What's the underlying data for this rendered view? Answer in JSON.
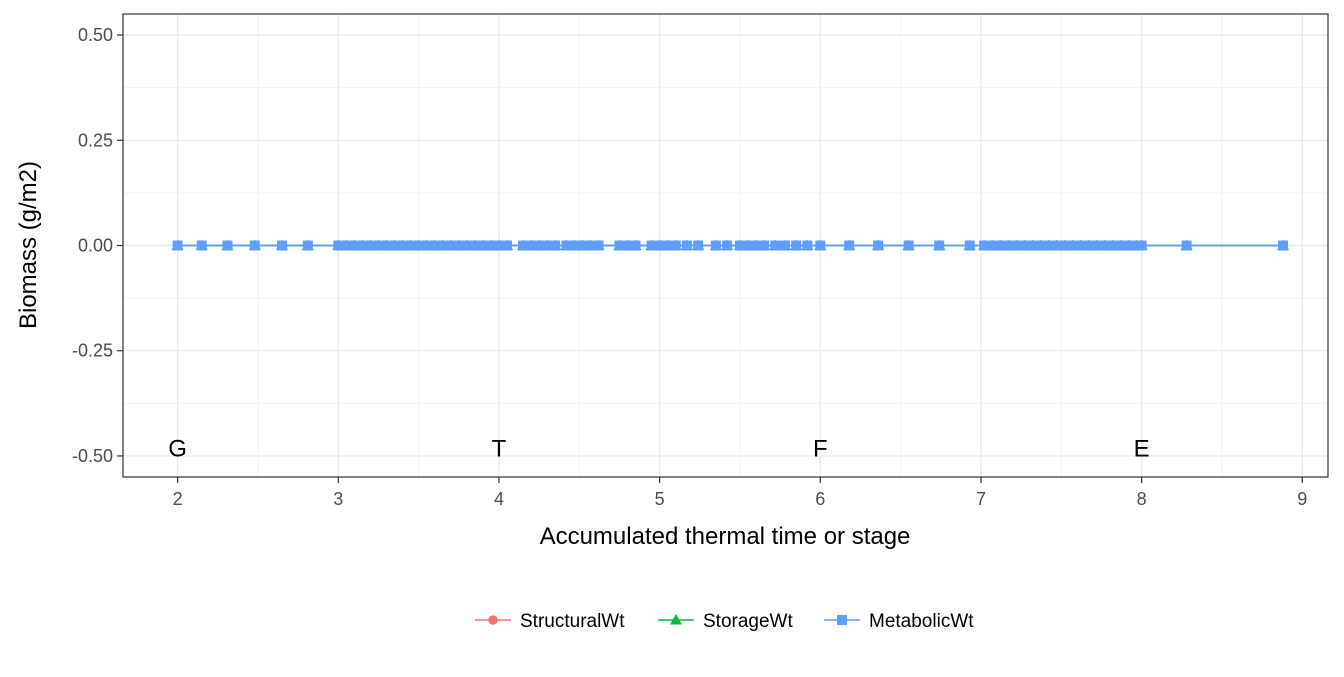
{
  "chart_data": {
    "type": "line",
    "title": "",
    "xlabel": "Accumulated thermal time or stage",
    "ylabel": "Biomass (g/m2)",
    "xlim": [
      1.66,
      9.16
    ],
    "ylim": [
      -0.55,
      0.55
    ],
    "x_ticks": [
      2,
      3,
      4,
      5,
      6,
      7,
      8,
      9
    ],
    "x_tick_labels": [
      "2",
      "3",
      "4",
      "5",
      "6",
      "7",
      "8",
      "9"
    ],
    "y_ticks": [
      -0.5,
      -0.25,
      0,
      0.25,
      0.5
    ],
    "y_tick_labels": [
      "-0.50",
      "-0.25",
      "0.00",
      "0.25",
      "0.50"
    ],
    "grid": true,
    "legend_position": "bottom",
    "stage_labels": [
      {
        "x": 2,
        "y": -0.48,
        "text": "G"
      },
      {
        "x": 4,
        "y": -0.48,
        "text": "T"
      },
      {
        "x": 6,
        "y": -0.48,
        "text": "F"
      },
      {
        "x": 8,
        "y": -0.48,
        "text": "E"
      }
    ],
    "x": [
      2.0,
      2.15,
      2.31,
      2.48,
      2.65,
      2.81,
      3.0,
      3.05,
      3.1,
      3.15,
      3.2,
      3.25,
      3.3,
      3.35,
      3.4,
      3.45,
      3.5,
      3.55,
      3.6,
      3.65,
      3.7,
      3.75,
      3.8,
      3.85,
      3.9,
      3.95,
      4.0,
      4.05,
      4.15,
      4.2,
      4.25,
      4.3,
      4.35,
      4.42,
      4.47,
      4.52,
      4.57,
      4.62,
      4.75,
      4.8,
      4.85,
      4.95,
      5.0,
      5.05,
      5.1,
      5.17,
      5.24,
      5.35,
      5.42,
      5.5,
      5.55,
      5.6,
      5.65,
      5.72,
      5.78,
      5.85,
      5.92,
      6.0,
      6.18,
      6.36,
      6.55,
      6.74,
      6.93,
      7.02,
      7.07,
      7.12,
      7.17,
      7.22,
      7.27,
      7.32,
      7.37,
      7.42,
      7.47,
      7.52,
      7.57,
      7.62,
      7.67,
      7.72,
      7.77,
      7.82,
      7.87,
      7.92,
      7.97,
      8.0,
      8.28,
      8.88
    ],
    "series": [
      {
        "name": "StructuralWt",
        "color": "#F8766D",
        "marker": "circle",
        "value": 0
      },
      {
        "name": "StorageWt",
        "color": "#00BA38",
        "marker": "triangle",
        "value": 0
      },
      {
        "name": "MetabolicWt",
        "color": "#619CFF",
        "marker": "square",
        "value": 0
      }
    ]
  }
}
